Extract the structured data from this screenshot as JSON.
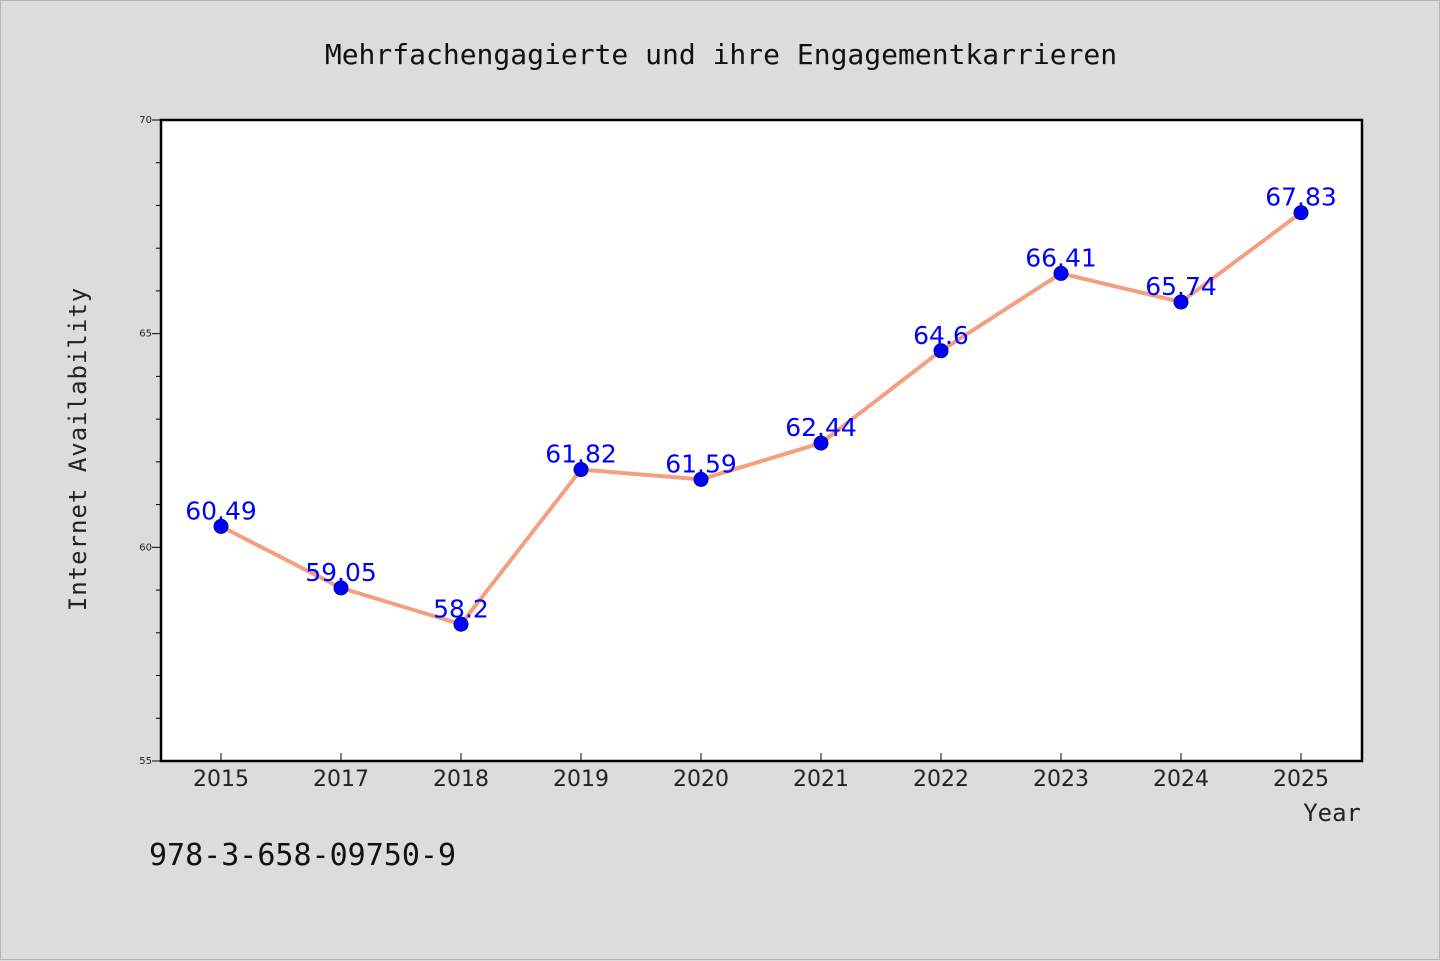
{
  "chart_data": {
    "type": "line",
    "title": "Mehrfachengagierte und ihre Engagementkarrieren",
    "xlabel": "Year",
    "ylabel": "Internet Availability",
    "categories": [
      "2015",
      "2017",
      "2018",
      "2019",
      "2020",
      "2021",
      "2022",
      "2023",
      "2024",
      "2025"
    ],
    "series": [
      {
        "values": [
          60.49,
          59.05,
          58.2,
          61.82,
          61.59,
          62.44,
          64.6,
          66.41,
          65.74,
          67.83
        ],
        "data_labels": [
          "60.49",
          "59.05",
          "58.2",
          "61.82",
          "61.59",
          "62.44",
          "64.6",
          "66.41",
          "65.74",
          "67.83"
        ]
      }
    ],
    "ylim": [
      55,
      70
    ],
    "yticks": [
      "55",
      "60",
      "65",
      "70"
    ],
    "grid": false,
    "legend": "none"
  },
  "footer_text": "978-3-658-09750-9",
  "colors": {
    "background": "#dcdcdc",
    "plot_area": "#ffffff",
    "line": "#f4a080",
    "marker": "#0000ff",
    "data_label": "#0000ff"
  }
}
